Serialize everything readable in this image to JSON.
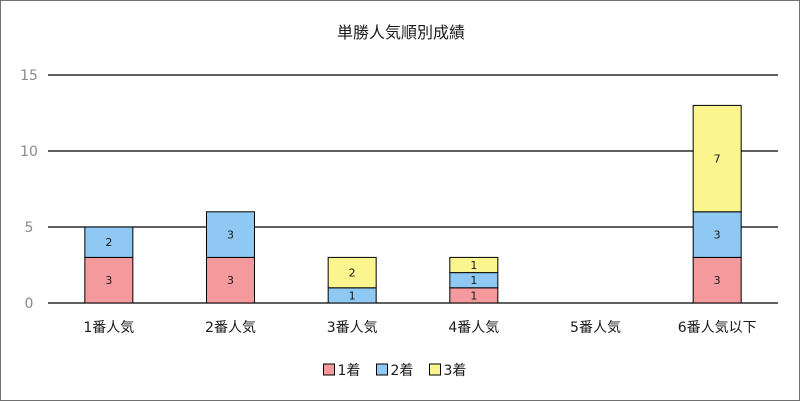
{
  "chart_data": {
    "type": "bar",
    "stacked": true,
    "title": "単勝人気順別成績",
    "categories": [
      "1番人気",
      "2番人気",
      "3番人気",
      "4番人気",
      "5番人気",
      "6番人気以下"
    ],
    "series": [
      {
        "name": "1着",
        "color": "#f4999c",
        "values": [
          3,
          3,
          0,
          1,
          0,
          3
        ]
      },
      {
        "name": "2着",
        "color": "#8ec8f3",
        "values": [
          2,
          3,
          1,
          1,
          0,
          3
        ]
      },
      {
        "name": "3着",
        "color": "#fbf590",
        "values": [
          0,
          0,
          2,
          1,
          0,
          7
        ]
      }
    ],
    "yticks": [
      0,
      5,
      10,
      15
    ],
    "ylim": [
      0,
      15
    ],
    "grid": true,
    "legend": "bottom"
  }
}
